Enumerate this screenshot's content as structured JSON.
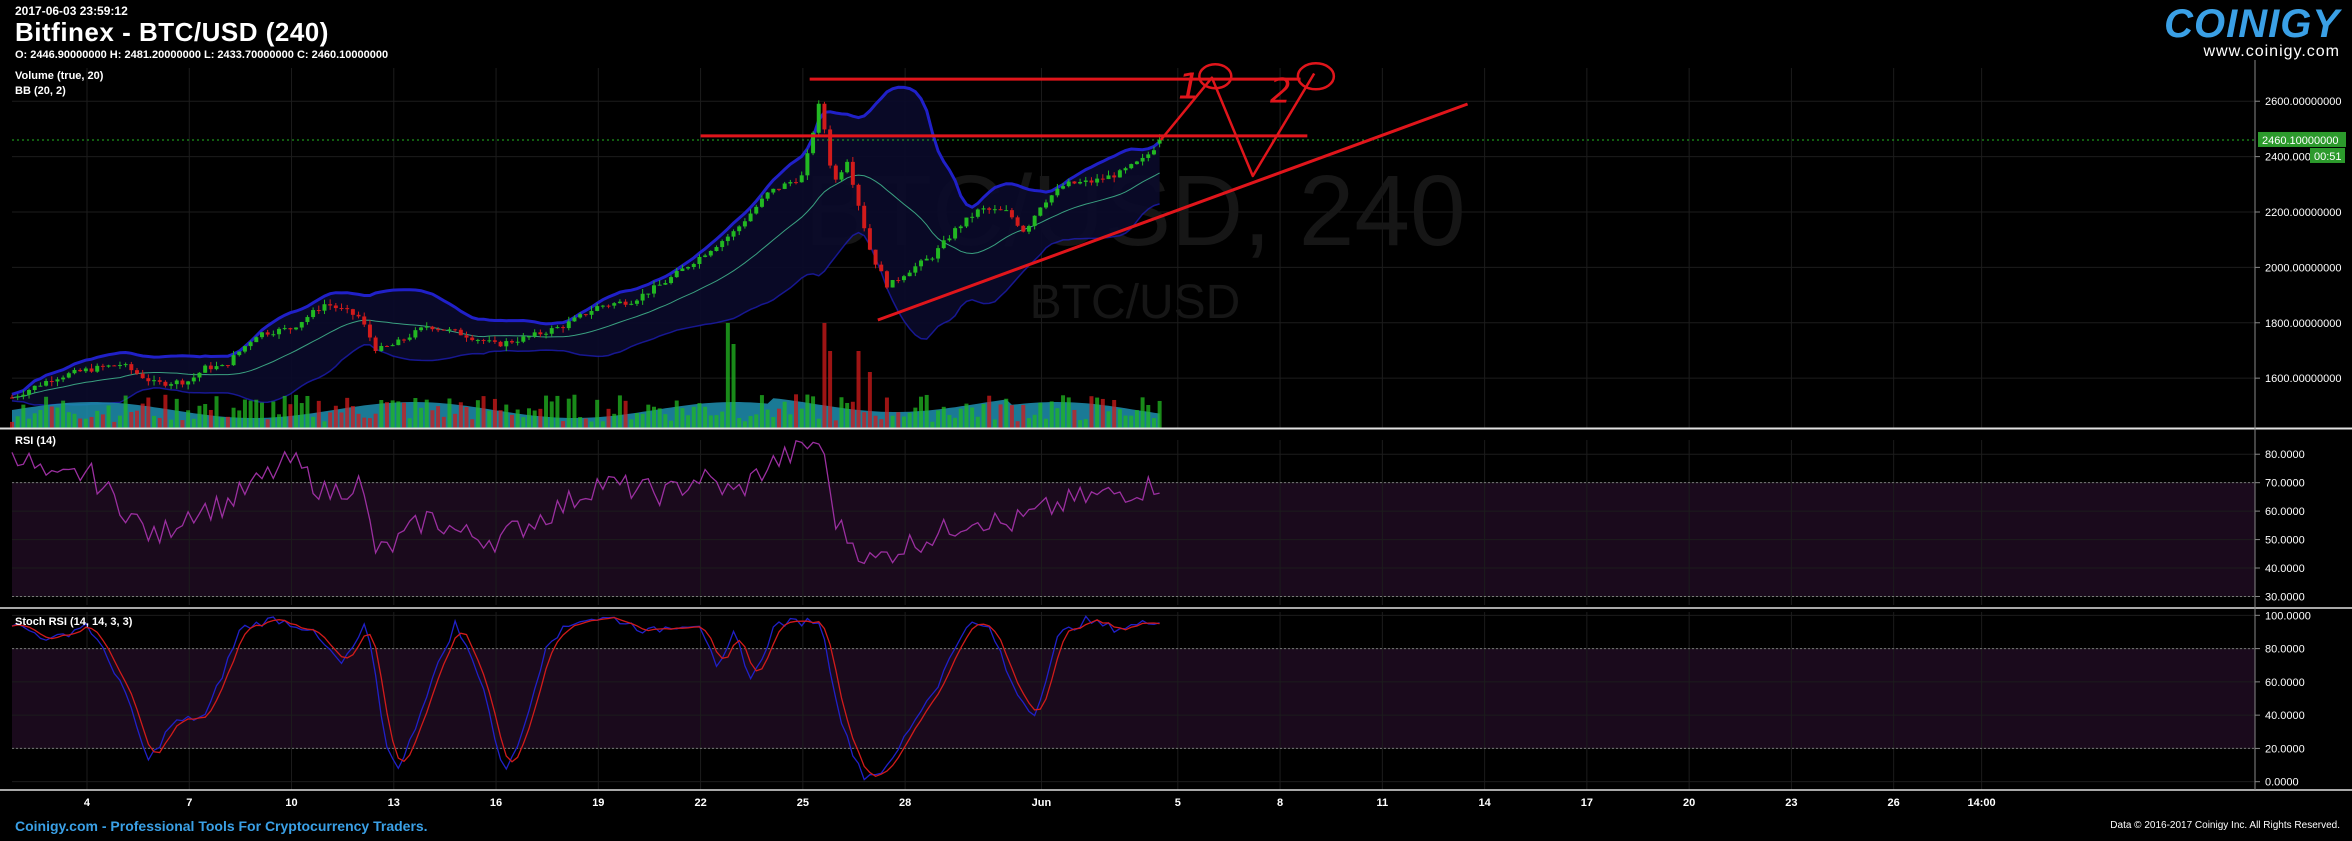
{
  "header": {
    "timestamp": "2017-06-03 23:59:12",
    "title": "Bitfinex - BTC/USD (240)",
    "ohlc": "O: 2446.90000000 H: 2481.20000000 L: 2433.70000000 C: 2460.10000000"
  },
  "indicators": {
    "volume": "Volume (true, 20)",
    "bb": "BB (20, 2)",
    "rsi": "RSI (14)",
    "stoch": "Stoch RSI (14, 14, 3, 3)"
  },
  "watermark": {
    "main": "BTC/USD, 240",
    "sub": "BTC/USD"
  },
  "logo": {
    "word": "COINIGY",
    "url": "www.coinigy.com"
  },
  "footer": {
    "left": "Coinigy.com - Professional Tools For Cryptocurrency Traders.",
    "right": "Data © 2016-2017 Coinigy Inc. All Rights Reserved."
  },
  "colors": {
    "up": "#22b822",
    "down": "#d11b1b",
    "bb_outer": "#2020c8",
    "bb_mid": "#3aa080",
    "rsi": "#9b2fa0",
    "stoch_k": "#2020c8",
    "stoch_d": "#d11b1b",
    "annotation": "#e0151b",
    "current_price_bg": "#2c9a2c",
    "volume_area": "#1e8fb0",
    "brand": "#3aa0e6"
  },
  "chart_data": [
    {
      "panel": "price",
      "type": "candlestick",
      "title": "Bitfinex - BTC/USD (240)",
      "ylim": [
        1420,
        2720
      ],
      "y_ticks": [
        "1600.00000000",
        "1800.00000000",
        "2000.00000000",
        "2200.00000000",
        "2400.00000000",
        "2600.00000000"
      ],
      "y_tick_values": [
        1600,
        1800,
        2000,
        2200,
        2400,
        2600
      ],
      "current_price": "2460.10000000",
      "countdown": "00:51",
      "x_ticks": [
        "4",
        "7",
        "10",
        "13",
        "16",
        "19",
        "22",
        "25",
        "28",
        "Jun",
        "5",
        "8",
        "11",
        "14",
        "17",
        "20",
        "23",
        "26",
        "14:00"
      ],
      "x_tick_days": [
        4,
        7,
        10,
        13,
        16,
        19,
        22,
        25,
        28,
        32,
        36,
        39,
        42,
        45,
        48,
        51,
        54,
        57,
        59.58
      ],
      "x_range_days": [
        1.8,
        67.6
      ],
      "close_anchors": [
        [
          1.8,
          1530
        ],
        [
          3,
          1600
        ],
        [
          4,
          1630
        ],
        [
          5,
          1650
        ],
        [
          6,
          1580
        ],
        [
          7,
          1590
        ],
        [
          7.5,
          1640
        ],
        [
          8,
          1640
        ],
        [
          9,
          1760
        ],
        [
          10,
          1780
        ],
        [
          11,
          1870
        ],
        [
          12,
          1820
        ],
        [
          12.5,
          1700
        ],
        [
          13,
          1720
        ],
        [
          14,
          1790
        ],
        [
          15,
          1760
        ],
        [
          16,
          1720
        ],
        [
          17,
          1750
        ],
        [
          18,
          1790
        ],
        [
          19,
          1860
        ],
        [
          20,
          1880
        ],
        [
          21,
          1950
        ],
        [
          22,
          2040
        ],
        [
          23,
          2130
        ],
        [
          24,
          2270
        ],
        [
          25,
          2330
        ],
        [
          25.5,
          2600
        ],
        [
          25.9,
          2300
        ],
        [
          26.3,
          2390
        ],
        [
          27,
          2050
        ],
        [
          27.5,
          1930
        ],
        [
          28,
          1980
        ],
        [
          28.8,
          2040
        ],
        [
          29.5,
          2140
        ],
        [
          30.2,
          2210
        ],
        [
          31,
          2200
        ],
        [
          31.5,
          2130
        ],
        [
          32,
          2230
        ],
        [
          32.7,
          2300
        ],
        [
          33.5,
          2310
        ],
        [
          34.3,
          2340
        ],
        [
          35,
          2390
        ],
        [
          35.5,
          2460
        ]
      ],
      "volume_spikes": [
        [
          22.8,
          0.75
        ],
        [
          23,
          0.6
        ],
        [
          25.6,
          0.75
        ],
        [
          25.8,
          0.55
        ],
        [
          26.6,
          0.55
        ],
        [
          27,
          0.4
        ],
        [
          12.7,
          0.2
        ]
      ],
      "annotations": [
        {
          "type": "hline",
          "y": 2680,
          "from_day": 25.2,
          "to_day": 39.6
        },
        {
          "type": "hline",
          "y": 2475,
          "from_day": 22.0,
          "to_day": 39.8
        },
        {
          "type": "trendline",
          "from": [
            27.2,
            1810
          ],
          "to": [
            44.5,
            2590
          ]
        },
        {
          "type": "text",
          "text": "1"
        },
        {
          "type": "text",
          "text": "2"
        }
      ]
    },
    {
      "panel": "rsi",
      "type": "line",
      "title": "RSI (14)",
      "ylim": [
        27,
        85
      ],
      "y_ticks": [
        "30.0000",
        "40.0000",
        "50.0000",
        "60.0000",
        "70.0000",
        "80.0000"
      ],
      "y_tick_values": [
        30,
        40,
        50,
        60,
        70,
        80
      ],
      "bands": [
        30,
        70
      ],
      "anchors": [
        [
          1.8,
          82
        ],
        [
          3,
          70
        ],
        [
          4,
          74
        ],
        [
          5,
          62
        ],
        [
          6,
          50
        ],
        [
          7,
          60
        ],
        [
          8,
          62
        ],
        [
          9,
          70
        ],
        [
          10,
          78
        ],
        [
          11,
          66
        ],
        [
          12,
          70
        ],
        [
          12.5,
          45
        ],
        [
          13,
          48
        ],
        [
          14,
          58
        ],
        [
          15,
          52
        ],
        [
          16,
          50
        ],
        [
          17,
          56
        ],
        [
          18,
          62
        ],
        [
          19,
          70
        ],
        [
          20,
          68
        ],
        [
          21,
          66
        ],
        [
          22,
          72
        ],
        [
          23,
          66
        ],
        [
          24,
          76
        ],
        [
          25,
          82
        ],
        [
          25.5,
          85
        ],
        [
          26,
          55
        ],
        [
          27,
          42
        ],
        [
          28,
          48
        ],
        [
          29,
          52
        ],
        [
          30,
          58
        ],
        [
          31,
          55
        ],
        [
          32,
          60
        ],
        [
          33,
          64
        ],
        [
          34,
          66
        ],
        [
          35,
          68
        ],
        [
          35.5,
          70
        ]
      ]
    },
    {
      "panel": "stoch_rsi",
      "type": "line",
      "title": "Stoch RSI (14, 14, 3, 3)",
      "ylim": [
        -5,
        102
      ],
      "y_ticks": [
        "0.0000",
        "20.0000",
        "40.0000",
        "60.0000",
        "80.0000",
        "100.0000"
      ],
      "y_tick_values": [
        0,
        20,
        40,
        60,
        80,
        100
      ],
      "bands": [
        20,
        80
      ],
      "anchors": [
        [
          1.8,
          95
        ],
        [
          3,
          85
        ],
        [
          4,
          95
        ],
        [
          5,
          60
        ],
        [
          5.8,
          12
        ],
        [
          6.5,
          35
        ],
        [
          7.5,
          40
        ],
        [
          8.5,
          92
        ],
        [
          9.5,
          98
        ],
        [
          10.5,
          92
        ],
        [
          11.5,
          70
        ],
        [
          12.2,
          95
        ],
        [
          12.8,
          20
        ],
        [
          13.2,
          8
        ],
        [
          14,
          55
        ],
        [
          14.8,
          95
        ],
        [
          15.6,
          60
        ],
        [
          16.2,
          5
        ],
        [
          16.8,
          30
        ],
        [
          17.5,
          85
        ],
        [
          18.5,
          98
        ],
        [
          19.5,
          98
        ],
        [
          20.5,
          90
        ],
        [
          21.2,
          94
        ],
        [
          22,
          95
        ],
        [
          22.5,
          65
        ],
        [
          23,
          90
        ],
        [
          23.5,
          60
        ],
        [
          24.2,
          95
        ],
        [
          25.5,
          97
        ],
        [
          26.2,
          30
        ],
        [
          26.8,
          3
        ],
        [
          27.5,
          8
        ],
        [
          28.2,
          35
        ],
        [
          29,
          60
        ],
        [
          29.8,
          95
        ],
        [
          30.5,
          92
        ],
        [
          31.2,
          55
        ],
        [
          31.8,
          40
        ],
        [
          32.5,
          88
        ],
        [
          33.3,
          97
        ],
        [
          34.2,
          92
        ],
        [
          35,
          95
        ],
        [
          35.5,
          98
        ]
      ]
    }
  ]
}
